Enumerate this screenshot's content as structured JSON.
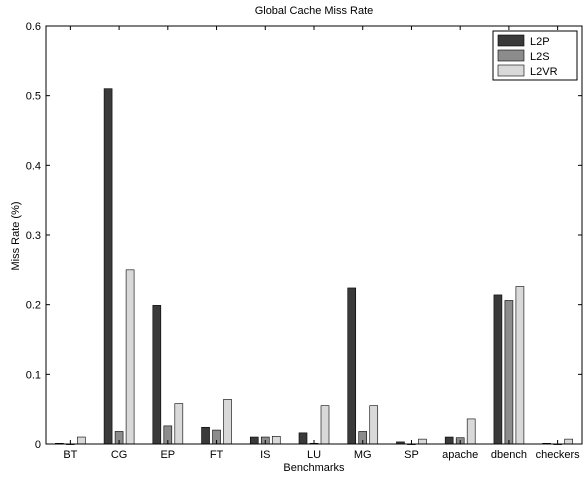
{
  "chart_data": {
    "type": "bar",
    "title": "Global Cache Miss Rate",
    "xlabel": "Benchmarks",
    "ylabel": "Miss Rate (%)",
    "ylim": [
      0,
      0.6
    ],
    "yticks": [
      "0",
      "0.1",
      "0.2",
      "0.3",
      "0.4",
      "0.5",
      "0.6"
    ],
    "grid": false,
    "legend_position": "top-right",
    "categories": [
      "BT",
      "CG",
      "EP",
      "FT",
      "IS",
      "LU",
      "MG",
      "SP",
      "apache",
      "dbench",
      "checkers"
    ],
    "series": [
      {
        "name": "L2P",
        "color": "#3a3a3a",
        "values": [
          0.001,
          0.51,
          0.199,
          0.024,
          0.01,
          0.016,
          0.224,
          0.003,
          0.01,
          0.214,
          0.001
        ]
      },
      {
        "name": "L2S",
        "color": "#8c8c8c",
        "values": [
          0.0,
          0.018,
          0.026,
          0.02,
          0.01,
          0.001,
          0.018,
          0.0,
          0.009,
          0.206,
          0.0
        ]
      },
      {
        "name": "L2VR",
        "color": "#d9d9d9",
        "values": [
          0.01,
          0.25,
          0.058,
          0.064,
          0.011,
          0.055,
          0.055,
          0.007,
          0.036,
          0.226,
          0.007
        ]
      }
    ]
  }
}
